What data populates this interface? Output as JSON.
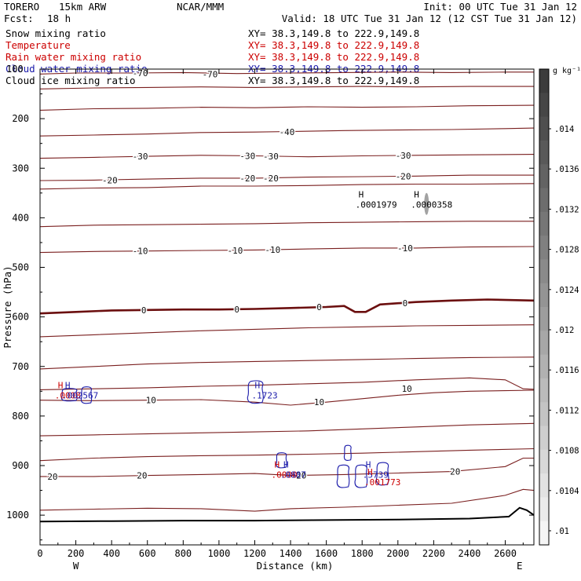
{
  "header": {
    "model": "TORERO",
    "resolution": "15km ARW",
    "org": "NCAR/MMM",
    "init": "Init: 00 UTC Tue 31 Jan 12",
    "fcst_label": "Fcst:",
    "fcst_value": "18 h",
    "valid": "Valid: 18 UTC Tue 31 Jan 12 (12 CST Tue 31 Jan 12)"
  },
  "fields": [
    {
      "name": "Snow mixing ratio",
      "xy": "XY=  38.3,149.8 to 222.9,149.8",
      "color": "#000000"
    },
    {
      "name": "Temperature",
      "xy": "XY=  38.3,149.8 to 222.9,149.8",
      "color": "#cc0000"
    },
    {
      "name": "Rain water mixing ratio",
      "xy": "XY=  38.3,149.8 to 222.9,149.8",
      "color": "#cc0000"
    },
    {
      "name": "Cloud water mixing ratio",
      "xy": "XY=  38.3,149.8 to 222.9,149.8",
      "color": "#1a1aaa"
    },
    {
      "name": "Cloud ice mixing ratio",
      "xy": "XY=  38.3,149.8 to 222.9,149.8",
      "color": "#000000"
    }
  ],
  "colors": {
    "isotherm": "#7a1f1f",
    "zero_isotherm": "#6b0f0f",
    "cloud_water": "#1a1aaa",
    "rain": "#cc0000",
    "text": "#000000"
  },
  "chart_data": {
    "type": "cross-section",
    "xlabel": "Distance (km)",
    "ylabel": "Pressure (hPa)",
    "xlim": [
      0,
      2760
    ],
    "ylim": [
      1060,
      100
    ],
    "x_ticks": [
      0,
      200,
      400,
      600,
      800,
      1000,
      1200,
      1400,
      1600,
      1800,
      2000,
      2200,
      2400,
      2600
    ],
    "y_ticks": [
      200,
      300,
      400,
      500,
      600,
      700,
      800,
      900,
      1000
    ],
    "y_top_tick_label": "100",
    "west_label": "W",
    "east_label": "E",
    "colorbar": {
      "unit": "g kg⁻¹",
      "ticks": [
        ".014",
        ".0136",
        ".0132",
        ".0128",
        ".0124",
        ".012",
        ".0116",
        ".0112",
        ".0108",
        ".0104",
        ".01"
      ]
    },
    "isotherms": [
      {
        "level": -70,
        "points": [
          [
            0,
            110
          ],
          [
            200,
            108
          ],
          [
            500,
            108
          ],
          [
            800,
            107
          ],
          [
            1100,
            109
          ],
          [
            1400,
            108
          ],
          [
            1700,
            107
          ],
          [
            2000,
            106
          ],
          [
            2300,
            107
          ],
          [
            2600,
            106
          ],
          [
            2760,
            106
          ]
        ]
      },
      {
        "level": -60,
        "points": [
          [
            0,
            140
          ],
          [
            300,
            138
          ],
          [
            600,
            137
          ],
          [
            900,
            136
          ],
          [
            1200,
            137
          ],
          [
            1500,
            136
          ],
          [
            1800,
            135
          ],
          [
            2100,
            136
          ],
          [
            2400,
            135
          ],
          [
            2760,
            135
          ]
        ]
      },
      {
        "level": -50,
        "points": [
          [
            0,
            183
          ],
          [
            300,
            180
          ],
          [
            600,
            179
          ],
          [
            900,
            177
          ],
          [
            1200,
            178
          ],
          [
            1500,
            176
          ],
          [
            1800,
            177
          ],
          [
            2100,
            176
          ],
          [
            2400,
            174
          ],
          [
            2760,
            173
          ]
        ]
      },
      {
        "level": -40,
        "points": [
          [
            0,
            235
          ],
          [
            300,
            233
          ],
          [
            600,
            231
          ],
          [
            900,
            228
          ],
          [
            1200,
            227
          ],
          [
            1400,
            226
          ],
          [
            1700,
            224
          ],
          [
            2000,
            223
          ],
          [
            2300,
            222
          ],
          [
            2600,
            220
          ],
          [
            2760,
            219
          ]
        ]
      },
      {
        "level": -30,
        "points": [
          [
            0,
            280
          ],
          [
            300,
            278
          ],
          [
            600,
            276
          ],
          [
            900,
            274
          ],
          [
            1200,
            275
          ],
          [
            1500,
            277
          ],
          [
            1800,
            275
          ],
          [
            2100,
            274
          ],
          [
            2400,
            273
          ],
          [
            2760,
            272
          ]
        ]
      },
      {
        "level": -20,
        "points": [
          [
            0,
            325
          ],
          [
            300,
            324
          ],
          [
            600,
            322
          ],
          [
            900,
            320
          ],
          [
            1200,
            320
          ],
          [
            1500,
            318
          ],
          [
            1800,
            317
          ],
          [
            2100,
            316
          ],
          [
            2400,
            314
          ],
          [
            2760,
            314
          ]
        ]
      },
      {
        "level": -20,
        "points": [
          [
            0,
            342
          ],
          [
            300,
            340
          ],
          [
            600,
            339
          ],
          [
            900,
            336
          ],
          [
            1200,
            336
          ],
          [
            1500,
            335
          ],
          [
            1800,
            333
          ],
          [
            2100,
            332
          ],
          [
            2400,
            332
          ],
          [
            2760,
            331
          ]
        ]
      },
      {
        "level": -10,
        "points": [
          [
            0,
            418
          ],
          [
            300,
            415
          ],
          [
            600,
            414
          ],
          [
            900,
            413
          ],
          [
            1200,
            412
          ],
          [
            1500,
            410
          ],
          [
            1800,
            409
          ],
          [
            2100,
            408
          ],
          [
            2400,
            407
          ],
          [
            2760,
            407
          ]
        ]
      },
      {
        "level": -10,
        "points": [
          [
            0,
            470
          ],
          [
            300,
            468
          ],
          [
            600,
            467
          ],
          [
            900,
            466
          ],
          [
            1200,
            465
          ],
          [
            1500,
            463
          ],
          [
            1800,
            461
          ],
          [
            2100,
            461
          ],
          [
            2400,
            459
          ],
          [
            2760,
            458
          ]
        ]
      },
      {
        "level": 0,
        "bold": true,
        "points": [
          [
            0,
            593
          ],
          [
            200,
            590
          ],
          [
            400,
            587
          ],
          [
            600,
            586
          ],
          [
            800,
            585
          ],
          [
            1000,
            585
          ],
          [
            1200,
            584
          ],
          [
            1400,
            582
          ],
          [
            1600,
            580
          ],
          [
            1700,
            578
          ],
          [
            1760,
            590
          ],
          [
            1820,
            590
          ],
          [
            1900,
            575
          ],
          [
            2100,
            570
          ],
          [
            2300,
            567
          ],
          [
            2500,
            565
          ],
          [
            2760,
            567
          ]
        ]
      },
      {
        "level": 0,
        "points": [
          [
            0,
            640
          ],
          [
            300,
            636
          ],
          [
            600,
            632
          ],
          [
            900,
            628
          ],
          [
            1200,
            625
          ],
          [
            1500,
            622
          ],
          [
            1800,
            620
          ],
          [
            2100,
            618
          ],
          [
            2400,
            617
          ],
          [
            2760,
            616
          ]
        ]
      },
      {
        "level": 10,
        "points": [
          [
            0,
            705
          ],
          [
            300,
            700
          ],
          [
            600,
            695
          ],
          [
            900,
            692
          ],
          [
            1200,
            690
          ],
          [
            1500,
            688
          ],
          [
            1800,
            686
          ],
          [
            2100,
            684
          ],
          [
            2400,
            682
          ],
          [
            2760,
            681
          ]
        ]
      },
      {
        "level": 10,
        "points": [
          [
            0,
            747
          ],
          [
            300,
            745
          ],
          [
            600,
            743
          ],
          [
            900,
            740
          ],
          [
            1200,
            738
          ],
          [
            1500,
            735
          ],
          [
            1800,
            732
          ],
          [
            2100,
            727
          ],
          [
            2400,
            723
          ],
          [
            2600,
            727
          ],
          [
            2700,
            745
          ],
          [
            2760,
            746
          ]
        ]
      },
      {
        "level": 10,
        "points": [
          [
            0,
            768
          ],
          [
            300,
            769
          ],
          [
            600,
            768
          ],
          [
            900,
            767
          ],
          [
            1200,
            772
          ],
          [
            1400,
            778
          ],
          [
            1600,
            772
          ],
          [
            1800,
            765
          ],
          [
            2000,
            758
          ],
          [
            2200,
            753
          ],
          [
            2400,
            750
          ],
          [
            2760,
            748
          ]
        ]
      },
      {
        "level": 10,
        "points": [
          [
            0,
            840
          ],
          [
            300,
            838
          ],
          [
            600,
            836
          ],
          [
            900,
            834
          ],
          [
            1200,
            832
          ],
          [
            1500,
            830
          ],
          [
            1800,
            826
          ],
          [
            2100,
            822
          ],
          [
            2400,
            818
          ],
          [
            2760,
            815
          ]
        ]
      },
      {
        "level": 20,
        "points": [
          [
            0,
            890
          ],
          [
            300,
            885
          ],
          [
            600,
            882
          ],
          [
            900,
            880
          ],
          [
            1200,
            879
          ],
          [
            1500,
            877
          ],
          [
            1800,
            875
          ],
          [
            2100,
            872
          ],
          [
            2400,
            869
          ],
          [
            2760,
            866
          ]
        ]
      },
      {
        "level": 20,
        "points": [
          [
            0,
            922
          ],
          [
            300,
            922
          ],
          [
            600,
            920
          ],
          [
            900,
            918
          ],
          [
            1200,
            916
          ],
          [
            1400,
            920
          ],
          [
            1700,
            918
          ],
          [
            2000,
            915
          ],
          [
            2300,
            912
          ],
          [
            2600,
            902
          ],
          [
            2700,
            885
          ],
          [
            2760,
            885
          ]
        ]
      },
      {
        "level": 20,
        "points": [
          [
            0,
            990
          ],
          [
            300,
            988
          ],
          [
            600,
            986
          ],
          [
            900,
            987
          ],
          [
            1200,
            992
          ],
          [
            1400,
            987
          ],
          [
            1700,
            984
          ],
          [
            2000,
            980
          ],
          [
            2300,
            976
          ],
          [
            2600,
            960
          ],
          [
            2700,
            948
          ],
          [
            2760,
            950
          ]
        ]
      }
    ],
    "isotherm_labels": [
      {
        "text": "-70",
        "x": 950,
        "p": 110
      },
      {
        "text": "-70",
        "x": 560,
        "p": 108
      },
      {
        "text": "-40",
        "x": 1380,
        "p": 227
      },
      {
        "text": "-30",
        "x": 560,
        "p": 276
      },
      {
        "text": "-30",
        "x": 1160,
        "p": 275
      },
      {
        "text": "-30",
        "x": 1290,
        "p": 276
      },
      {
        "text": "-30",
        "x": 2030,
        "p": 274
      },
      {
        "text": "-20",
        "x": 390,
        "p": 324
      },
      {
        "text": "-20",
        "x": 1160,
        "p": 320
      },
      {
        "text": "-20",
        "x": 1290,
        "p": 320
      },
      {
        "text": "-20",
        "x": 2030,
        "p": 316
      },
      {
        "text": "-10",
        "x": 560,
        "p": 467
      },
      {
        "text": "-10",
        "x": 1090,
        "p": 466
      },
      {
        "text": "-10",
        "x": 1300,
        "p": 464
      },
      {
        "text": "-10",
        "x": 2040,
        "p": 461
      },
      {
        "text": "0",
        "x": 580,
        "p": 586
      },
      {
        "text": "0",
        "x": 1100,
        "p": 585
      },
      {
        "text": "0",
        "x": 1560,
        "p": 580
      },
      {
        "text": "0",
        "x": 2040,
        "p": 572
      },
      {
        "text": "10",
        "x": 620,
        "p": 768
      },
      {
        "text": "10",
        "x": 1560,
        "p": 772
      },
      {
        "text": "10",
        "x": 2050,
        "p": 745
      },
      {
        "text": "20",
        "x": 70,
        "p": 922
      },
      {
        "text": "20",
        "x": 570,
        "p": 920
      },
      {
        "text": "20",
        "x": 1460,
        "p": 920
      },
      {
        "text": "20",
        "x": 2320,
        "p": 912
      }
    ],
    "cloud_contours": [
      {
        "x0": 120,
        "x1": 210,
        "p0": 745,
        "p1": 770
      },
      {
        "x0": 230,
        "x1": 290,
        "p0": 742,
        "p1": 775
      },
      {
        "x0": 1160,
        "x1": 1250,
        "p0": 730,
        "p1": 775
      },
      {
        "x0": 1320,
        "x1": 1380,
        "p0": 875,
        "p1": 905
      },
      {
        "x0": 1700,
        "x1": 1740,
        "p0": 860,
        "p1": 890
      },
      {
        "x0": 1660,
        "x1": 1730,
        "p0": 900,
        "p1": 945
      },
      {
        "x0": 1760,
        "x1": 1830,
        "p0": 900,
        "p1": 945
      },
      {
        "x0": 1880,
        "x1": 1950,
        "p0": 895,
        "p1": 940
      }
    ],
    "extrema": [
      {
        "marker": "H",
        "value": ".0001979",
        "x": 1780,
        "p": 375,
        "color": "#000000"
      },
      {
        "marker": "H",
        "value": ".0000358",
        "x": 2090,
        "p": 375,
        "color": "#000000"
      },
      {
        "marker": "H",
        "value": ".0008",
        "x": 100,
        "p": 760,
        "color": "#cc0000"
      },
      {
        "marker": "H",
        "value": ".002567",
        "x": 140,
        "p": 760,
        "color": "#1a1aaa"
      },
      {
        "marker": "H",
        "value": ".1723",
        "x": 1200,
        "p": 760,
        "color": "#1a1aaa"
      },
      {
        "marker": "H",
        "value": ".0000",
        "x": 1310,
        "p": 920,
        "color": "#cc0000"
      },
      {
        "marker": "H",
        "value": ".0887",
        "x": 1360,
        "p": 920,
        "color": "#1a1aaa"
      },
      {
        "marker": "H",
        "value": ".5739",
        "x": 1820,
        "p": 920,
        "color": "#1a1aaa"
      },
      {
        "marker": "H",
        "value": ".001773",
        "x": 1830,
        "p": 935,
        "color": "#cc0000"
      }
    ],
    "terrain": [
      [
        0,
        1013
      ],
      [
        400,
        1012
      ],
      [
        800,
        1011
      ],
      [
        1200,
        1011
      ],
      [
        1600,
        1010
      ],
      [
        2000,
        1009
      ],
      [
        2400,
        1007
      ],
      [
        2620,
        1003
      ],
      [
        2680,
        985
      ],
      [
        2720,
        990
      ],
      [
        2760,
        1000
      ]
    ]
  }
}
